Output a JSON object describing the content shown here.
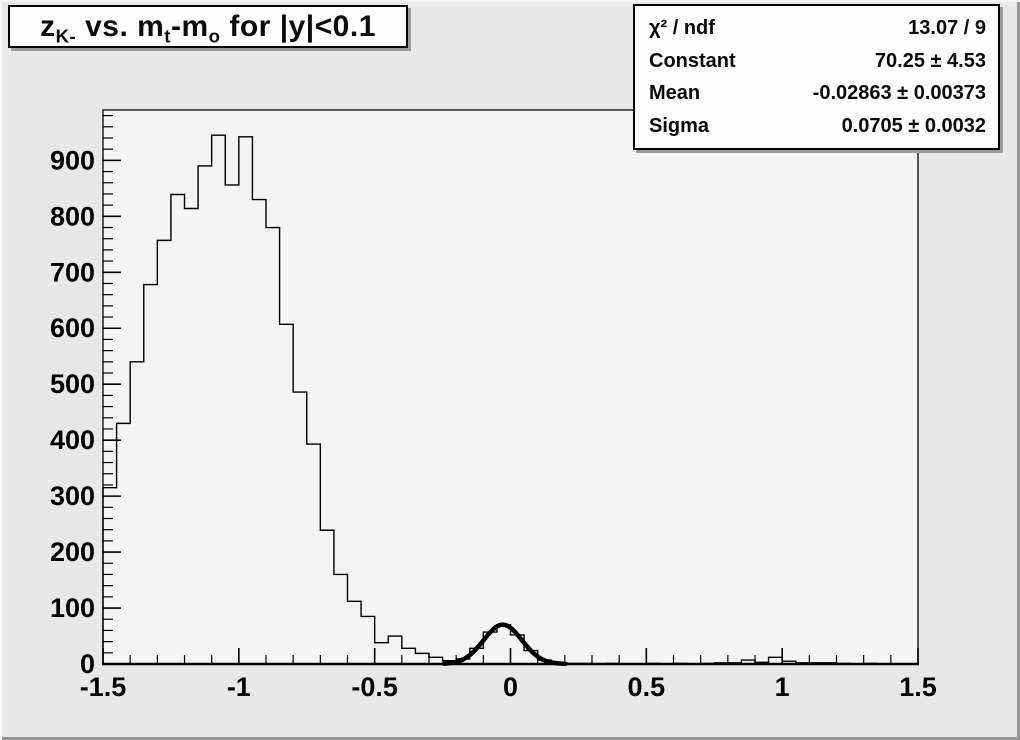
{
  "colors": {
    "canvas_bg": "#e9e8e9",
    "frame_bg": "#f5f4f5",
    "line": "#000000",
    "box_bg": "#fdfdfd",
    "box_shadow": "#9b9b9b"
  },
  "title_box": {
    "segments": [
      {
        "t": "z"
      },
      {
        "t": "K-",
        "sub": true
      },
      {
        "t": " vs. m"
      },
      {
        "t": "t",
        "sub": true
      },
      {
        "t": "-m"
      },
      {
        "t": "o",
        "sub": true
      },
      {
        "t": " for |y|<0.1"
      }
    ]
  },
  "stats_box": {
    "rows": [
      {
        "label": "χ² / ndf",
        "value": "13.07 / 9"
      },
      {
        "label": "Constant",
        "value": "70.25 ± 4.53"
      },
      {
        "label": "Mean",
        "value": "-0.02863 ± 0.00373"
      },
      {
        "label": "Sigma",
        "value": "0.0705 ± 0.0032"
      }
    ]
  },
  "chart_data": {
    "type": "bar",
    "title": "z_{K-} vs. m_{t}-m_{o} for |y|<0.1",
    "xlabel": "",
    "ylabel": "",
    "grid": false,
    "legend_position": "none",
    "x_range": [
      -1.5,
      1.5
    ],
    "y_range": [
      0,
      990
    ],
    "bin_start": -1.5,
    "bin_width": 0.05,
    "values": [
      315,
      430,
      540,
      678,
      757,
      839,
      814,
      890,
      945,
      856,
      942,
      830,
      780,
      607,
      486,
      393,
      239,
      160,
      112,
      85,
      38,
      50,
      28,
      19,
      12,
      6,
      9,
      28,
      57,
      70,
      52,
      24,
      7,
      2,
      1,
      1,
      0,
      1,
      0,
      0,
      1,
      0,
      1,
      0,
      1,
      2,
      2,
      7,
      3,
      12,
      5,
      2,
      2,
      2,
      1,
      0,
      1,
      0,
      0,
      0
    ],
    "x_ticks": {
      "majors": [
        {
          "v": -1.5,
          "label": "-1.5"
        },
        {
          "v": -1.0,
          "label": "-1"
        },
        {
          "v": -0.5,
          "label": "-0.5"
        },
        {
          "v": 0.0,
          "label": "0"
        },
        {
          "v": 0.5,
          "label": "0.5"
        },
        {
          "v": 1.0,
          "label": "1"
        },
        {
          "v": 1.5,
          "label": "1.5"
        }
      ],
      "minor_step": 0.1
    },
    "y_ticks": {
      "majors": [
        {
          "v": 0,
          "label": "0"
        },
        {
          "v": 100,
          "label": "100"
        },
        {
          "v": 200,
          "label": "200"
        },
        {
          "v": 300,
          "label": "300"
        },
        {
          "v": 400,
          "label": "400"
        },
        {
          "v": 500,
          "label": "500"
        },
        {
          "v": 600,
          "label": "600"
        },
        {
          "v": 700,
          "label": "700"
        },
        {
          "v": 800,
          "label": "800"
        },
        {
          "v": 900,
          "label": "900"
        }
      ],
      "minor_step": 20
    },
    "fit": {
      "type": "gaussian",
      "constant": 70.25,
      "mean": -0.02863,
      "sigma": 0.0705,
      "range": [
        -0.245,
        0.205
      ]
    }
  }
}
